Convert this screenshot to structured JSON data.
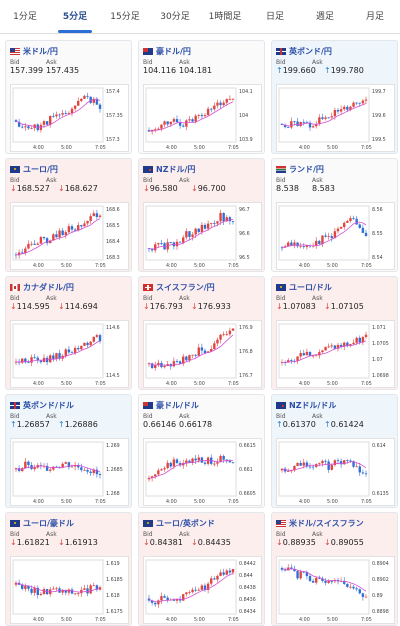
{
  "tabs": [
    {
      "label": "1分足",
      "active": false
    },
    {
      "label": "5分足",
      "active": true
    },
    {
      "label": "15分足",
      "active": false
    },
    {
      "label": "30分足",
      "active": false
    },
    {
      "label": "1時間足",
      "active": false
    },
    {
      "label": "日足",
      "active": false
    },
    {
      "label": "週足",
      "active": false
    },
    {
      "label": "月足",
      "active": false
    }
  ],
  "labels": {
    "bid": "Bid",
    "ask": "Ask"
  },
  "colors": {
    "up_candle": "#e0453f",
    "down_candle": "#2f6fd6",
    "ma_line": "#d64fd6",
    "accent": "#2b6fd6"
  },
  "cards": [
    {
      "pair": "米ドル/円",
      "flag": "us",
      "bid": "157.399",
      "ask": "157.435",
      "dir": "flat",
      "x_labels": [
        "4:00",
        "5:00",
        "7:05"
      ],
      "y_labels": [
        "157.4",
        "157.35",
        "157.3"
      ],
      "trend": [
        0.35,
        0.25,
        0.3,
        0.45,
        0.5,
        0.7,
        0.85,
        0.6
      ]
    },
    {
      "pair": "豪ドル/円",
      "flag": "au",
      "bid": "104.116",
      "ask": "104.181",
      "dir": "flat",
      "x_labels": [
        "4:00",
        "5:00",
        "7:05"
      ],
      "y_labels": [
        "104.1",
        "104",
        "103.9"
      ],
      "trend": [
        0.25,
        0.3,
        0.4,
        0.35,
        0.5,
        0.6,
        0.75,
        0.8
      ]
    },
    {
      "pair": "英ポンド/円",
      "flag": "uk",
      "bid": "199.660",
      "ask": "199.780",
      "dir": "up",
      "x_labels": [
        "4:00",
        "5:00",
        "7:05"
      ],
      "y_labels": [
        "199.7",
        "199.6",
        "199.5"
      ],
      "trend": [
        0.3,
        0.35,
        0.3,
        0.4,
        0.5,
        0.55,
        0.7,
        0.8
      ]
    },
    {
      "pair": "ユーロ/円",
      "flag": "eu",
      "bid": "168.527",
      "ask": "168.627",
      "dir": "down",
      "x_labels": [
        "4:00",
        "5:00",
        "7:05"
      ],
      "y_labels": [
        "168.6",
        "168.5",
        "168.4",
        "168.3"
      ],
      "trend": [
        0.15,
        0.25,
        0.35,
        0.4,
        0.55,
        0.6,
        0.75,
        0.85
      ]
    },
    {
      "pair": "NZドル/円",
      "flag": "nz",
      "bid": "96.580",
      "ask": "96.700",
      "dir": "down",
      "x_labels": [
        "4:00",
        "5:00",
        "7:05"
      ],
      "y_labels": [
        "96.7",
        "96.6",
        "96.5"
      ],
      "trend": [
        0.2,
        0.25,
        0.3,
        0.45,
        0.55,
        0.7,
        0.8,
        0.75
      ]
    },
    {
      "pair": "ランド/円",
      "flag": "za",
      "bid": "8.538",
      "ask": "8.583",
      "dir": "flat",
      "x_labels": [
        "4:00",
        "5:00",
        "7:05"
      ],
      "y_labels": [
        "8.56",
        "8.55",
        "8.54"
      ],
      "trend": [
        0.3,
        0.25,
        0.3,
        0.35,
        0.45,
        0.6,
        0.75,
        0.5
      ]
    },
    {
      "pair": "カナダドル/円",
      "flag": "ca",
      "bid": "114.595",
      "ask": "114.694",
      "dir": "down",
      "x_labels": [
        "4:00",
        "5:00",
        "7:05"
      ],
      "y_labels": [
        "114.6",
        "114.5"
      ],
      "trend": [
        0.3,
        0.35,
        0.3,
        0.4,
        0.45,
        0.5,
        0.65,
        0.75
      ]
    },
    {
      "pair": "スイスフラン/円",
      "flag": "ch",
      "bid": "176.793",
      "ask": "176.933",
      "dir": "down",
      "x_labels": [
        "4:00",
        "5:00",
        "7:05"
      ],
      "y_labels": [
        "176.9",
        "176.8",
        "176.7"
      ],
      "trend": [
        0.2,
        0.25,
        0.3,
        0.35,
        0.5,
        0.55,
        0.75,
        0.85
      ]
    },
    {
      "pair": "ユーロ/ドル",
      "flag": "eu",
      "bid": "1.07083",
      "ask": "1.07105",
      "dir": "down",
      "x_labels": [
        "4:00",
        "5:00",
        "7:05"
      ],
      "y_labels": [
        "1.071",
        "1.0705",
        "1.07",
        "1.0698"
      ],
      "trend": [
        0.3,
        0.35,
        0.45,
        0.5,
        0.55,
        0.6,
        0.65,
        0.75
      ]
    },
    {
      "pair": "英ポンド/ドル",
      "flag": "uk",
      "bid": "1.26857",
      "ask": "1.26886",
      "dir": "up",
      "x_labels": [
        "4:00",
        "5:00",
        "7:05"
      ],
      "y_labels": [
        "1.269",
        "1.2685",
        "1.268"
      ],
      "trend": [
        0.45,
        0.6,
        0.5,
        0.55,
        0.6,
        0.55,
        0.5,
        0.35
      ]
    },
    {
      "pair": "豪ドル/ドル",
      "flag": "au",
      "bid": "0.66146",
      "ask": "0.66178",
      "dir": "flat",
      "x_labels": [
        "4:00",
        "5:00",
        "7:05"
      ],
      "y_labels": [
        "0.6615",
        "0.661",
        "0.6605"
      ],
      "trend": [
        0.35,
        0.5,
        0.6,
        0.65,
        0.7,
        0.65,
        0.7,
        0.6
      ]
    },
    {
      "pair": "NZドル/ドル",
      "flag": "nz",
      "bid": "0.61370",
      "ask": "0.61424",
      "dir": "up",
      "x_labels": [
        "4:00",
        "5:00",
        "7:05"
      ],
      "y_labels": [
        "0.614",
        "0.6135"
      ],
      "trend": [
        0.45,
        0.55,
        0.6,
        0.6,
        0.55,
        0.65,
        0.55,
        0.4
      ]
    },
    {
      "pair": "ユーロ/豪ドル",
      "flag": "eu",
      "bid": "1.61821",
      "ask": "1.61913",
      "dir": "down",
      "x_labels": [
        "4:00",
        "5:00",
        "7:05"
      ],
      "y_labels": [
        "1.619",
        "1.6185",
        "1.618",
        "1.6175"
      ],
      "trend": [
        0.6,
        0.45,
        0.4,
        0.45,
        0.4,
        0.4,
        0.45,
        0.5
      ]
    },
    {
      "pair": "ユーロ/英ポンド",
      "flag": "eu",
      "bid": "0.84381",
      "ask": "0.84435",
      "dir": "down",
      "x_labels": [
        "4:00",
        "5:00",
        "7:05"
      ],
      "y_labels": [
        "0.8442",
        "0.844",
        "0.8438",
        "0.8436",
        "0.8434"
      ],
      "trend": [
        0.2,
        0.3,
        0.25,
        0.35,
        0.45,
        0.55,
        0.75,
        0.85
      ]
    },
    {
      "pair": "米ドル/スイスフラン",
      "flag": "us",
      "bid": "0.88935",
      "ask": "0.89055",
      "dir": "down",
      "x_labels": [
        "4:00",
        "5:00",
        "7:05"
      ],
      "y_labels": [
        "0.8904",
        "0.8902",
        "0.89",
        "0.8898"
      ],
      "trend": [
        0.85,
        0.75,
        0.7,
        0.6,
        0.65,
        0.55,
        0.5,
        0.35
      ]
    }
  ]
}
